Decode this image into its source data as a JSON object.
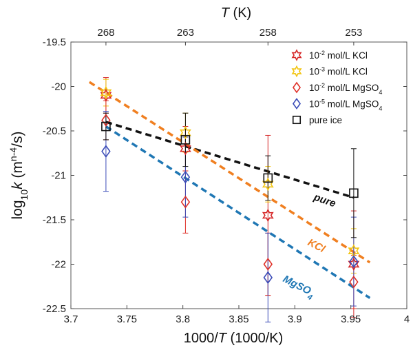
{
  "chart_data": {
    "type": "scatter",
    "xlabel": {
      "prefix": "1000/",
      "var": "T",
      "suffix": " (1000/K)"
    },
    "ylabel": {
      "prefix": "log",
      "sub": "10",
      "var": "k",
      "suffix1": " (m",
      "sup": "n-4",
      "suffix2": "/s)"
    },
    "top_xlabel": {
      "var": "T",
      "suffix": " (K)"
    },
    "xlim": [
      3.7,
      4.0
    ],
    "ylim": [
      -22.5,
      -19.5
    ],
    "x_ticks": [
      3.7,
      3.75,
      3.8,
      3.85,
      3.9,
      3.95,
      4.0
    ],
    "x_tick_labels": [
      "3.7",
      "3.75",
      "3.8",
      "3.85",
      "3.9",
      "3.95",
      "4"
    ],
    "y_ticks": [
      -22.5,
      -22,
      -21.5,
      -21,
      -20.5,
      -20,
      -19.5
    ],
    "y_tick_labels": [
      "-22.5",
      "-22",
      "-21.5",
      "-21",
      "-20.5",
      "-20",
      "-19.5"
    ],
    "top_x_ticks": [
      {
        "label": "268",
        "x": 3.7313
      },
      {
        "label": "263",
        "x": 3.8023
      },
      {
        "label": "258",
        "x": 3.876
      },
      {
        "label": "253",
        "x": 3.9526
      }
    ],
    "series": [
      {
        "name": "10-2 mol/L KCl",
        "legend": {
          "base": "10",
          "sup": "-2",
          "text": " mol/L KCl"
        },
        "marker": "star",
        "color": "#d62728",
        "x": [
          3.7313,
          3.8023,
          3.876,
          3.9526
        ],
        "y": [
          -20.1,
          -20.7,
          -21.45,
          -22.0
        ],
        "yerr": [
          0.2,
          0.25,
          0.9,
          0.6
        ]
      },
      {
        "name": "10-3 mol/L KCl",
        "legend": {
          "base": "10",
          "sup": "-3",
          "text": " mol/L KCl"
        },
        "marker": "star",
        "color": "#f2c40f",
        "x": [
          3.7313,
          3.8023,
          3.876,
          3.9526
        ],
        "y": [
          -20.07,
          -20.52,
          -21.1,
          -21.85
        ],
        "yerr": [
          0.15,
          0.22,
          0.2,
          0.25
        ]
      },
      {
        "name": "10-2 mol/L MgSO4",
        "legend": {
          "base": "10",
          "sup": "-2",
          "text": " mol/L MgSO",
          "sub": "4"
        },
        "marker": "diamond",
        "color": "#e0322a",
        "x": [
          3.7313,
          3.8023,
          3.876,
          3.9526
        ],
        "y": [
          -20.38,
          -21.3,
          -22.0,
          -22.2
        ],
        "yerr": [
          0.22,
          0.35,
          0.35,
          0.3
        ]
      },
      {
        "name": "10-5 mol/L MgSO4",
        "legend": {
          "base": "10",
          "sup": "-5",
          "text": " mol/L MgSO",
          "sub": "4"
        },
        "marker": "diamond",
        "color": "#3b4cb8",
        "x": [
          3.7313,
          3.8023,
          3.876,
          3.9526
        ],
        "y": [
          -20.73,
          -21.02,
          -22.15,
          -21.97
        ],
        "yerr": [
          0.45,
          0.45,
          0.5,
          0.5
        ]
      },
      {
        "name": "pure ice",
        "legend": {
          "base": "pure ice",
          "sup": "",
          "text": ""
        },
        "marker": "square",
        "color": "#111111",
        "x": [
          3.7313,
          3.8023,
          3.876,
          3.9526
        ],
        "y": [
          -20.45,
          -20.6,
          -21.03,
          -21.2
        ],
        "yerr": [
          0.15,
          0.3,
          0.25,
          0.5
        ]
      }
    ],
    "fit_lines": [
      {
        "label": "pure",
        "color": "#111111",
        "x": [
          3.7313,
          3.9526
        ],
        "y": [
          -20.4,
          -21.25
        ]
      },
      {
        "label": "KCl",
        "color": "#f07f20",
        "x": [
          3.7165,
          3.967
        ],
        "y": [
          -19.95,
          -21.98
        ]
      },
      {
        "label": "MgSO",
        "label_sub": "4",
        "color": "#1f77b4",
        "x": [
          3.7313,
          3.967
        ],
        "y": [
          -20.45,
          -22.38
        ]
      }
    ],
    "legend_position": "top-right",
    "grid": false
  }
}
